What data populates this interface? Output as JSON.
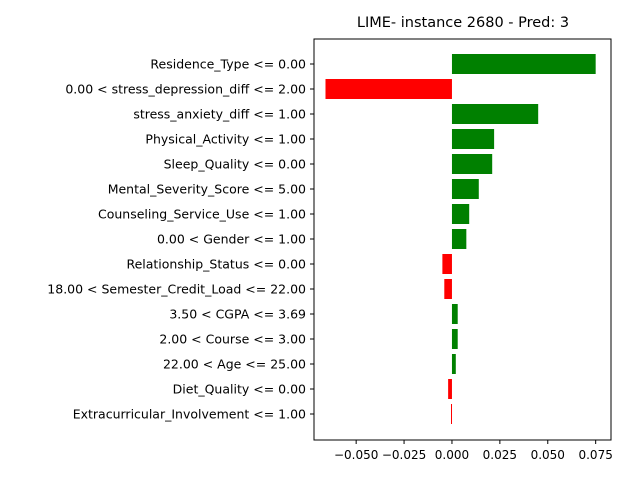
{
  "chart_data": {
    "type": "bar",
    "orientation": "horizontal",
    "title": "LIME- instance 2680 - Pred: 3",
    "xlabel": "",
    "ylabel": "",
    "categories": [
      "Residence_Type <= 0.00",
      "0.00 < stress_depression_diff <= 2.00",
      "stress_anxiety_diff <= 1.00",
      "Physical_Activity <= 1.00",
      "Sleep_Quality <= 0.00",
      "Mental_Severity_Score <= 5.00",
      "Counseling_Service_Use <= 1.00",
      "0.00 < Gender <= 1.00",
      "Relationship_Status <= 0.00",
      "18.00 < Semester_Credit_Load <= 22.00",
      "3.50 < CGPA <= 3.69",
      "2.00 < Course <= 3.00",
      "22.00 < Age <= 25.00",
      "Diet_Quality <= 0.00",
      "Extracurricular_Involvement <= 1.00"
    ],
    "values": [
      0.075,
      -0.066,
      0.045,
      0.022,
      0.021,
      0.014,
      0.009,
      0.0075,
      -0.005,
      -0.004,
      0.003,
      0.003,
      0.002,
      -0.002,
      -0.0005
    ],
    "xlim": [
      -0.072,
      0.083
    ],
    "xticks": [
      -0.05,
      -0.025,
      0.0,
      0.025,
      0.05,
      0.075
    ],
    "xtick_labels": [
      "−0.050",
      "−0.025",
      "0.000",
      "0.025",
      "0.050",
      "0.075"
    ],
    "positive_color": "#008000",
    "negative_color": "#ff0000",
    "grid": false,
    "legend": "none"
  }
}
